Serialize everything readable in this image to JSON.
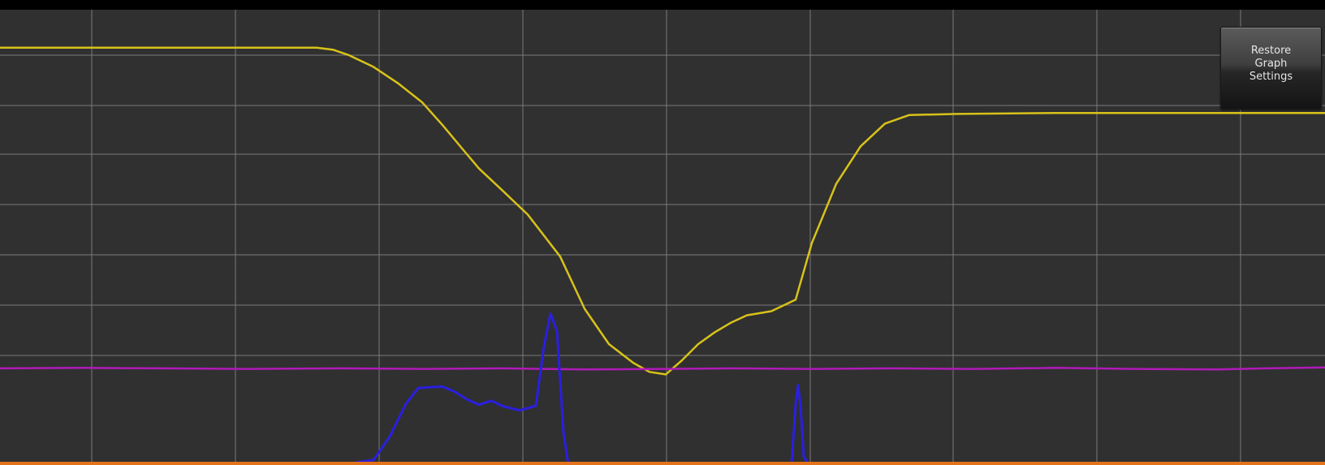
{
  "toolbar": {
    "restore_line1": "Restore",
    "restore_line2": "Graph",
    "restore_line3": "Settings"
  },
  "colors": {
    "background": "#303030",
    "grid": "#7a7a7a",
    "yellow_trace": "#d8c21a",
    "magenta_trace": "#b01ab8",
    "blue_trace": "#2a1fe0",
    "baseline": "#e2731a"
  },
  "chart_data": {
    "type": "line",
    "grid": true,
    "xlim": [
      0,
      1632
    ],
    "ylim": [
      0,
      9
    ],
    "series": [
      {
        "color": "#d8c21a",
        "x": [
          0,
          200,
          390,
          410,
          430,
          460,
          490,
          520,
          545,
          570,
          590,
          620,
          650,
          690,
          720,
          750,
          780,
          800,
          820,
          840,
          860,
          880,
          900,
          920,
          950,
          980,
          1000,
          1030,
          1060,
          1090,
          1120,
          1180,
          1300,
          1450,
          1632
        ],
        "y": [
          8.25,
          8.25,
          8.25,
          8.21,
          8.1,
          7.87,
          7.55,
          7.17,
          6.72,
          6.24,
          5.86,
          5.41,
          4.95,
          4.12,
          3.09,
          2.39,
          2.02,
          1.84,
          1.79,
          2.07,
          2.39,
          2.62,
          2.81,
          2.96,
          3.04,
          3.27,
          4.39,
          5.56,
          6.3,
          6.75,
          6.92,
          6.94,
          6.96,
          6.96,
          6.96
        ]
      },
      {
        "color": "#b01ab8",
        "x": [
          0,
          100,
          200,
          300,
          420,
          520,
          620,
          720,
          820,
          900,
          1000,
          1100,
          1200,
          1300,
          1400,
          1500,
          1560,
          1632
        ],
        "y": [
          1.91,
          1.92,
          1.91,
          1.9,
          1.91,
          1.9,
          1.91,
          1.89,
          1.9,
          1.91,
          1.9,
          1.91,
          1.9,
          1.92,
          1.9,
          1.89,
          1.91,
          1.93
        ]
      },
      {
        "color": "#2a1fe0",
        "x": [
          438,
          460,
          480,
          500,
          515,
          530,
          545,
          560,
          575,
          590,
          605,
          620,
          640,
          660,
          670,
          678,
          686,
          694,
          700
        ],
        "y": [
          0.05,
          0.1,
          0.56,
          1.21,
          1.52,
          1.54,
          1.55,
          1.45,
          1.3,
          1.19,
          1.27,
          1.16,
          1.08,
          1.17,
          2.35,
          2.99,
          2.65,
          0.65,
          0.01
        ]
      },
      {
        "color": "#2a1fe0",
        "x": [
          975,
          980,
          983,
          986,
          990,
          995,
          1000
        ],
        "y": [
          0.02,
          1.2,
          1.58,
          1.17,
          0.16,
          0.04,
          0.01
        ]
      }
    ]
  }
}
